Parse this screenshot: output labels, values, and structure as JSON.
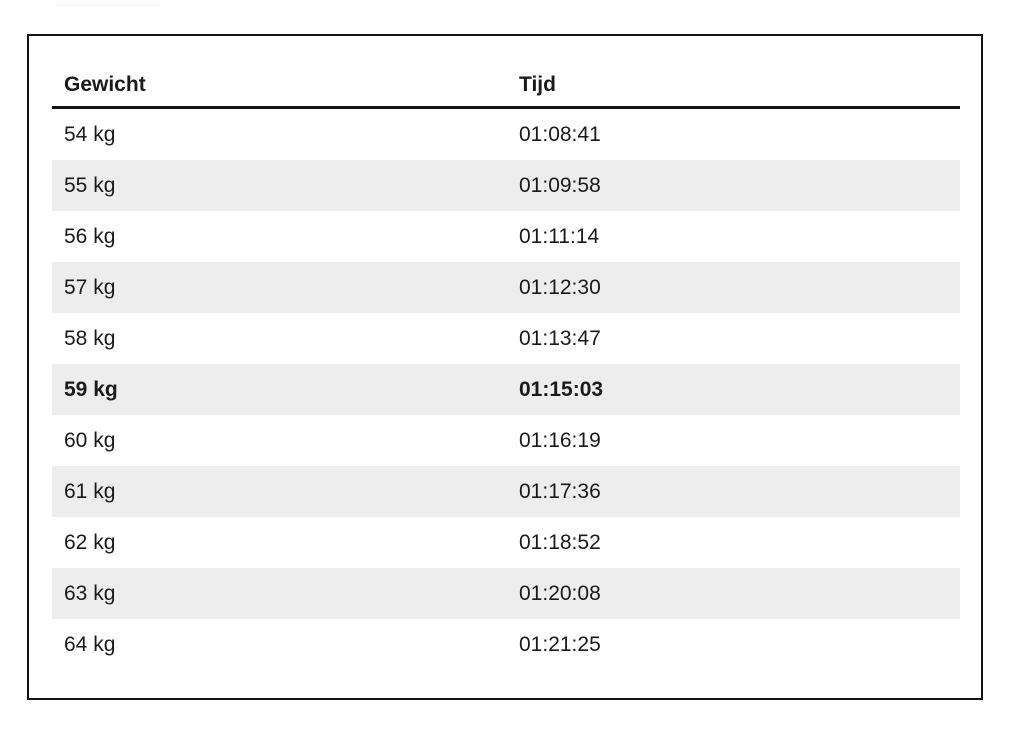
{
  "table": {
    "columns": [
      {
        "key": "gewicht",
        "label": "Gewicht"
      },
      {
        "key": "tijd",
        "label": "Tijd"
      }
    ],
    "rows": [
      {
        "gewicht": "54 kg",
        "tijd": "01:08:41"
      },
      {
        "gewicht": "55 kg",
        "tijd": "01:09:58"
      },
      {
        "gewicht": "56 kg",
        "tijd": "01:11:14"
      },
      {
        "gewicht": "57 kg",
        "tijd": "01:12:30"
      },
      {
        "gewicht": "58 kg",
        "tijd": "01:13:47"
      },
      {
        "gewicht": "59 kg",
        "tijd": "01:15:03"
      },
      {
        "gewicht": "60 kg",
        "tijd": "01:16:19"
      },
      {
        "gewicht": "61 kg",
        "tijd": "01:17:36"
      },
      {
        "gewicht": "62 kg",
        "tijd": "01:18:52"
      },
      {
        "gewicht": "63 kg",
        "tijd": "01:20:08"
      },
      {
        "gewicht": "64 kg",
        "tijd": "01:21:25"
      }
    ],
    "highlight_row_index": 5
  },
  "colors": {
    "stripe": "#ededed",
    "border": "#141414",
    "text": "#1a1a1a",
    "background": "#ffffff",
    "top_artifact": "#fafafa"
  },
  "chart_data": {
    "type": "table",
    "columns": [
      "Gewicht",
      "Tijd"
    ],
    "rows": [
      [
        "54 kg",
        "01:08:41"
      ],
      [
        "55 kg",
        "01:09:58"
      ],
      [
        "56 kg",
        "01:11:14"
      ],
      [
        "57 kg",
        "01:12:30"
      ],
      [
        "58 kg",
        "01:13:47"
      ],
      [
        "59 kg",
        "01:15:03"
      ],
      [
        "60 kg",
        "01:16:19"
      ],
      [
        "61 kg",
        "01:17:36"
      ],
      [
        "62 kg",
        "01:18:52"
      ],
      [
        "63 kg",
        "01:20:08"
      ],
      [
        "64 kg",
        "01:21:25"
      ]
    ],
    "highlighted_row": [
      "59 kg",
      "01:15:03"
    ],
    "layout_hints": "zebra striping on alternate rows starting with second row; thick rule under header; outer black frame"
  }
}
